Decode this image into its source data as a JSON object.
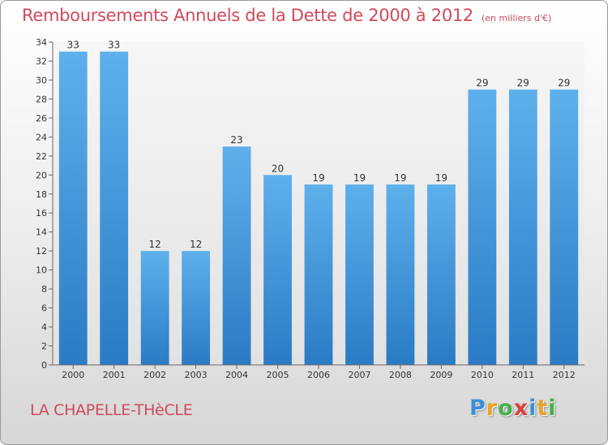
{
  "header": {
    "title": "Remboursements Annuels de la Dette de 2000 à 2012",
    "unit": "(en milliers d'€)"
  },
  "footer": {
    "commune": "LA CHAPELLE-THèCLE",
    "logo_letters": [
      "P",
      "r",
      "o",
      "x",
      "i",
      "t",
      "i"
    ],
    "logo_colors": [
      "#3b8fd9",
      "#e8a32a",
      "#46b04a",
      "#d9443a",
      "#3b8fd9",
      "#e8a32a",
      "#46b04a"
    ]
  },
  "chart_data": {
    "type": "bar",
    "categories": [
      "2000",
      "2001",
      "2002",
      "2003",
      "2004",
      "2005",
      "2006",
      "2007",
      "2008",
      "2009",
      "2010",
      "2011",
      "2012"
    ],
    "values": [
      33,
      33,
      12,
      12,
      23,
      20,
      19,
      19,
      19,
      19,
      29,
      29,
      29
    ],
    "title": "Remboursements Annuels de la Dette de 2000 à 2012",
    "subtitle": "(en milliers d'€)",
    "xlabel": "",
    "ylabel": "",
    "ylim": [
      0,
      34
    ],
    "ytick_step": 2,
    "grid": false,
    "bar_color": "#4a9de0",
    "data_labels": true
  }
}
